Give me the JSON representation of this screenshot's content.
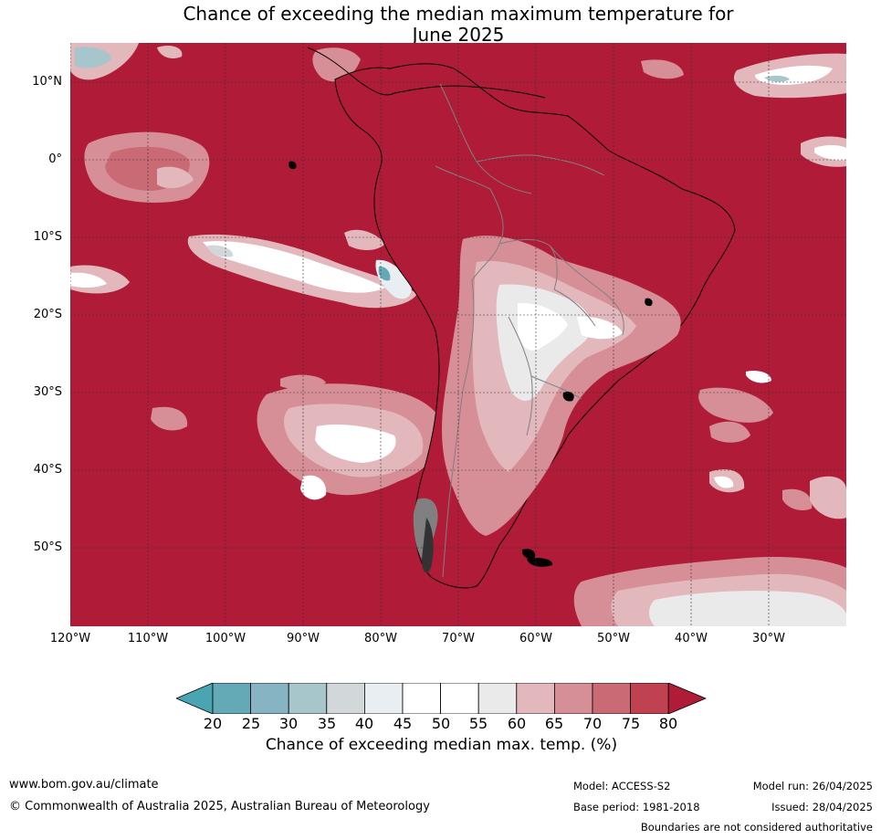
{
  "title": {
    "line1": "Chance of exceeding the median maximum temperature for",
    "line2": "June 2025"
  },
  "map": {
    "lat_labels": [
      "10°N",
      "0°",
      "10°S",
      "20°S",
      "30°S",
      "40°S",
      "50°S"
    ],
    "lon_labels": [
      "120°W",
      "110°W",
      "100°W",
      "90°W",
      "80°W",
      "70°W",
      "60°W",
      "50°W",
      "40°W",
      "30°W"
    ],
    "colors": {
      "ocean_high": "#b01c38",
      "land_high": "#b01c38",
      "c75_80": "#c0414f",
      "c70_75": "#c96a74",
      "c65_70": "#d68f97",
      "c60_65": "#e2b8bd",
      "c55_60": "#ebeaeb",
      "c45_55": "#ffffff",
      "c40_45": "#e8eef1",
      "c35_40": "#d2d8da",
      "c30_35": "#a7c6cb",
      "c25_30": "#86b4c2",
      "c20_25": "#64a9b6",
      "below20": "#4aa4b2",
      "coast": "#000000",
      "border": "#808080",
      "grid": "#333333"
    }
  },
  "colorbar": {
    "ticks": [
      "20",
      "25",
      "30",
      "35",
      "40",
      "45",
      "50",
      "55",
      "60",
      "65",
      "70",
      "75",
      "80"
    ],
    "label": "Chance of exceeding median max. temp. (%)",
    "colors": [
      "#4aa4b2",
      "#64a9b6",
      "#86b4c2",
      "#a7c6cb",
      "#d2d8da",
      "#e8eef1",
      "#ffffff",
      "#ffffff",
      "#ebeaeb",
      "#e2b8bd",
      "#d68f97",
      "#c96a74",
      "#c0414f",
      "#b01c38"
    ]
  },
  "footer": {
    "website": "www.bom.gov.au/climate",
    "copyright": "© Commonwealth of Australia 2025, Australian Bureau of Meteorology",
    "model": "Model: ACCESS-S2",
    "base_period": "Base period: 1981-2018",
    "model_run": "Model run: 26/04/2025",
    "issued": "Issued: 28/04/2025",
    "disclaimer": "Boundaries are not considered authoritative"
  }
}
